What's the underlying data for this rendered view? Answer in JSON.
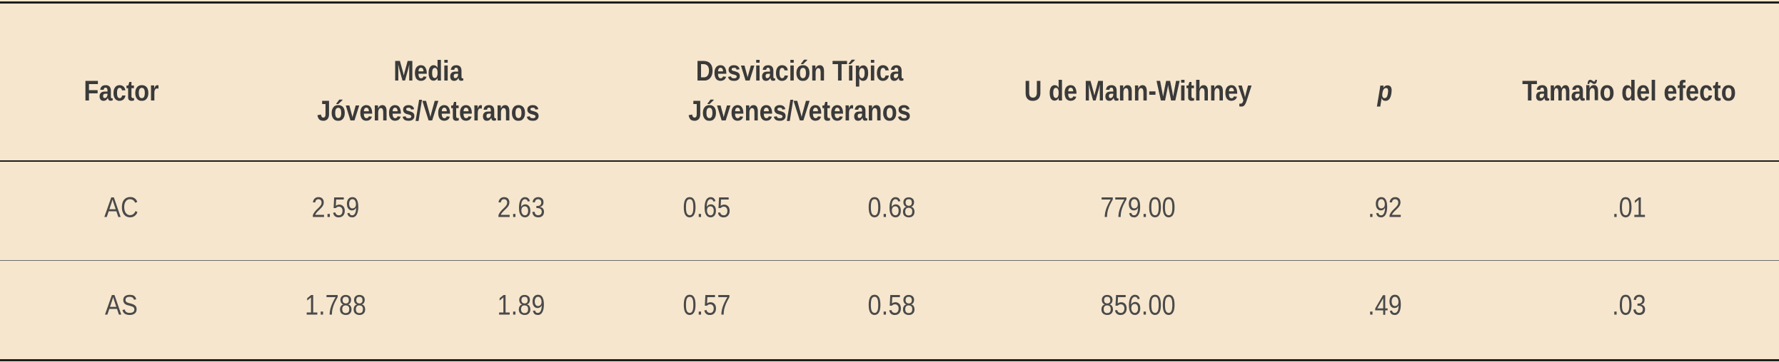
{
  "table": {
    "headers": {
      "factor": "Factor",
      "media_line1": "Media",
      "media_line2": "Jóvenes/Veteranos",
      "sd_line1": "Desviación Típica",
      "sd_line2": "Jóvenes/Veteranos",
      "mann_whitney": "U de Mann-Withney",
      "p": "p",
      "effect_size": "Tamaño del efecto"
    },
    "rows": [
      {
        "factor": "AC",
        "media_jovenes": "2.59",
        "media_veteranos": "2.63",
        "sd_jovenes": "0.65",
        "sd_veteranos": "0.68",
        "u": "779.00",
        "p": ".92",
        "effect": ".01"
      },
      {
        "factor": "AS",
        "media_jovenes": "1.788",
        "media_veteranos": "1.89",
        "sd_jovenes": "0.57",
        "sd_veteranos": "0.58",
        "u": "856.00",
        "p": ".49",
        "effect": ".03"
      }
    ]
  }
}
